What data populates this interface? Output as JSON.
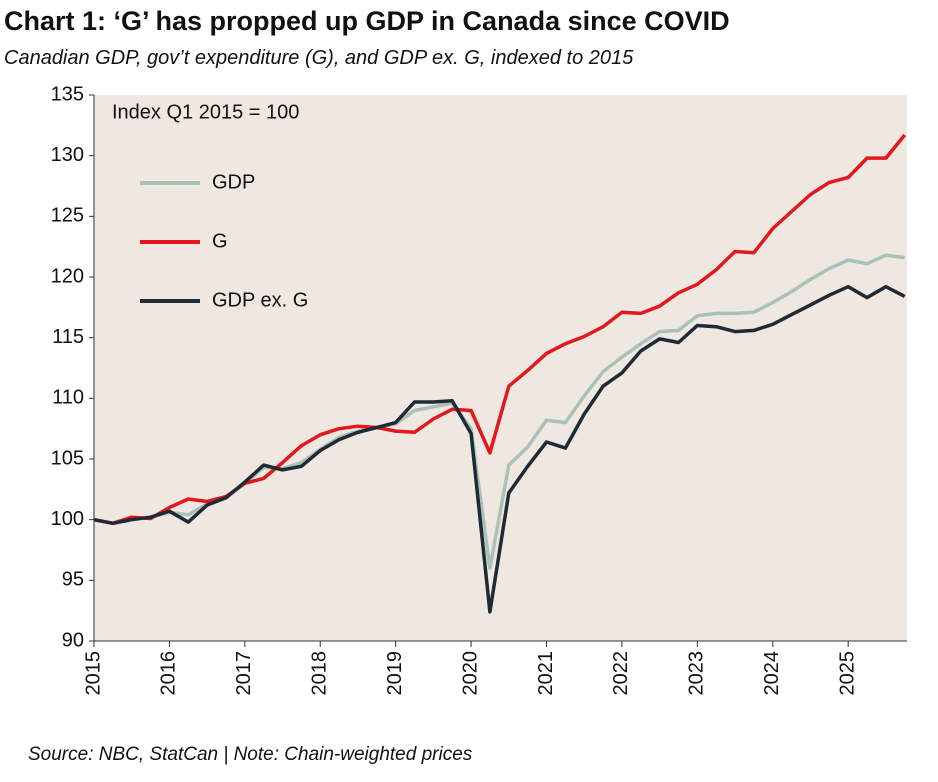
{
  "chart_data": {
    "type": "line",
    "title": "Chart 1: ‘G’ has propped up GDP in Canada since COVID",
    "subtitle": "Canadian GDP, gov’t expenditure (G), and GDP ex. G, indexed to 2015",
    "annotation": "Index Q1 2015 = 100",
    "source": "Source: NBC, StatCan | Note: Chain-weighted prices",
    "x": [
      2015,
      2015.25,
      2015.5,
      2015.75,
      2016,
      2016.25,
      2016.5,
      2016.75,
      2017,
      2017.25,
      2017.5,
      2017.75,
      2018,
      2018.25,
      2018.5,
      2018.75,
      2019,
      2019.25,
      2019.5,
      2019.75,
      2020,
      2020.25,
      2020.5,
      2020.75,
      2021,
      2021.25,
      2021.5,
      2021.75,
      2022,
      2022.25,
      2022.5,
      2022.75,
      2023,
      2023.25,
      2023.5,
      2023.75,
      2024,
      2024.25,
      2024.5,
      2024.75,
      2025,
      2025.25,
      2025.5,
      2025.75
    ],
    "series": [
      {
        "name": "GDP",
        "color": "#a9c1b9",
        "values": [
          100,
          99.7,
          100.1,
          100.2,
          100.6,
          100.4,
          101.3,
          101.8,
          103.0,
          104.3,
          104.2,
          104.7,
          105.8,
          106.8,
          107.3,
          107.6,
          107.9,
          109.0,
          109.3,
          109.6,
          107.5,
          96.0,
          104.5,
          106.0,
          108.2,
          108.0,
          110.2,
          112.2,
          113.4,
          114.5,
          115.5,
          115.6,
          116.8,
          117.0,
          117.0,
          117.1,
          117.9,
          118.8,
          119.8,
          120.7,
          121.4,
          121.1,
          121.8,
          121.6
        ]
      },
      {
        "name": "G",
        "color": "#e3181e",
        "values": [
          100,
          99.7,
          100.2,
          100.1,
          101.0,
          101.7,
          101.5,
          101.9,
          103.0,
          103.4,
          104.7,
          106.1,
          107.0,
          107.5,
          107.7,
          107.6,
          107.3,
          107.2,
          108.3,
          109.1,
          109.0,
          105.5,
          111.0,
          112.3,
          113.7,
          114.5,
          115.1,
          115.9,
          117.1,
          117.0,
          117.6,
          118.7,
          119.4,
          120.6,
          122.1,
          122.0,
          124.0,
          125.4,
          126.8,
          127.8,
          128.2,
          129.8,
          129.8,
          131.7
        ]
      },
      {
        "name": "GDP ex. G",
        "color": "#1e2a36",
        "values": [
          100,
          99.7,
          100.0,
          100.2,
          100.7,
          99.8,
          101.2,
          101.8,
          103.1,
          104.5,
          104.1,
          104.4,
          105.7,
          106.6,
          107.2,
          107.6,
          108.0,
          109.7,
          109.7,
          109.8,
          107.1,
          92.4,
          102.2,
          104.4,
          106.4,
          105.9,
          108.7,
          111.0,
          112.1,
          113.9,
          114.9,
          114.6,
          116.0,
          115.9,
          115.5,
          115.6,
          116.1,
          116.9,
          117.7,
          118.5,
          119.2,
          118.3,
          119.2,
          118.4
        ]
      }
    ],
    "xlim": [
      2015,
      2025.78
    ],
    "xticks": [
      2015,
      2016,
      2017,
      2018,
      2019,
      2020,
      2021,
      2022,
      2023,
      2024,
      2025
    ],
    "ylim": [
      90,
      135
    ],
    "yticks": [
      90,
      95,
      100,
      105,
      110,
      115,
      120,
      125,
      130,
      135
    ],
    "legend": "upper left",
    "grid": false
  }
}
